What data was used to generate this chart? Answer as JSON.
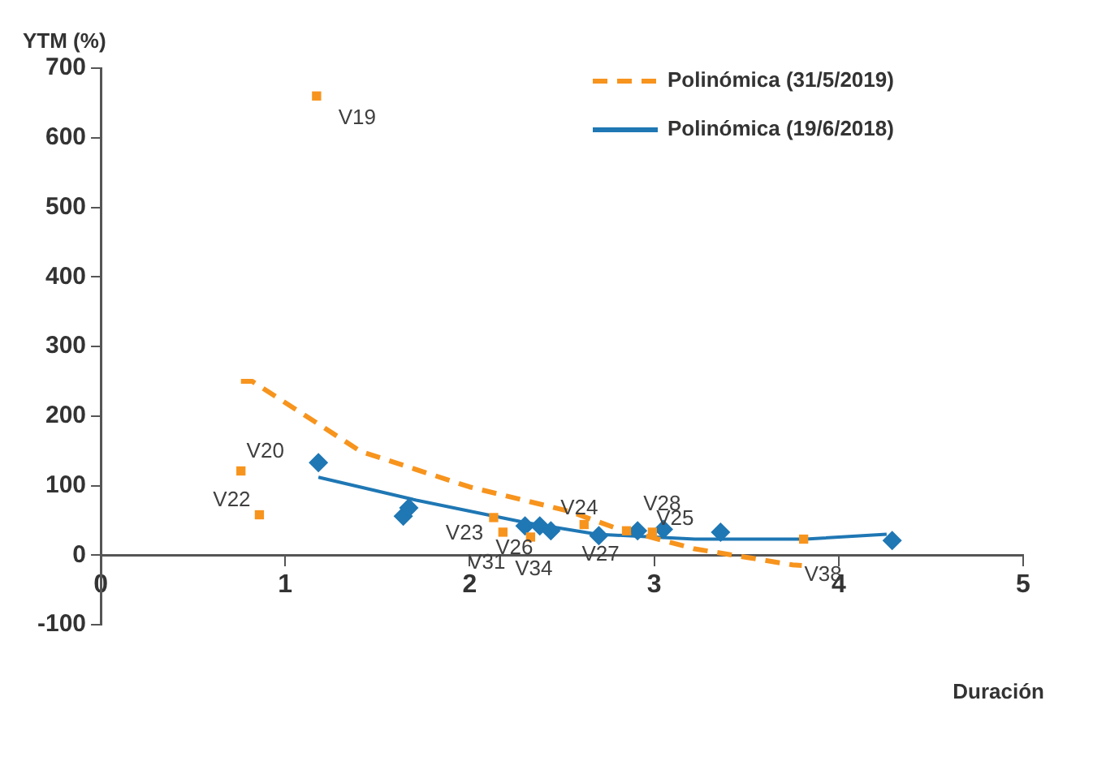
{
  "chart_data": {
    "type": "scatter",
    "xlabel": "Duración",
    "ylabel": "YTM (%)",
    "xlim": [
      0,
      5
    ],
    "xticks": [
      0,
      1,
      2,
      3,
      4,
      5
    ],
    "ylim": [
      -100,
      700
    ],
    "yticks": [
      -100,
      0,
      100,
      200,
      300,
      400,
      500,
      600,
      700
    ],
    "grid": false,
    "legend": "top right",
    "series": [
      {
        "type": "scatter",
        "marker": "square",
        "color": "#f7941d",
        "x": [
          1.17,
          0.76,
          0.86,
          2.13,
          2.18,
          2.33,
          2.62,
          2.85,
          2.99,
          3.81
        ],
        "values": [
          660,
          121,
          58,
          54,
          33,
          26,
          44,
          35,
          33,
          23
        ]
      },
      {
        "type": "scatter",
        "marker": "diamond",
        "color": "#1f77b4",
        "x": [
          1.18,
          1.64,
          1.67,
          2.3,
          2.38,
          2.44,
          2.7,
          2.91,
          3.05,
          3.36,
          4.29
        ],
        "values": [
          133,
          56,
          68,
          42,
          42,
          35,
          28,
          35,
          37,
          33,
          21
        ]
      },
      {
        "type": "line",
        "name": "Polinómica (31/5/2019)",
        "line_style": "dashed",
        "marker": "none",
        "color": "#f7941d",
        "x": [
          0.76,
          0.82,
          1.41,
          2.0,
          2.54,
          2.78,
          3.22,
          3.75,
          3.8
        ],
        "values": [
          250,
          250,
          149,
          98,
          63,
          40,
          9,
          -14,
          -15
        ]
      },
      {
        "type": "line",
        "name": "Polinómica (19/6/2018)",
        "line_style": "solid",
        "marker": "none",
        "color": "#1f77b4",
        "x": [
          1.18,
          1.71,
          2.3,
          2.69,
          3.22,
          3.82,
          4.26
        ],
        "values": [
          112,
          79,
          47,
          30,
          23,
          23,
          30
        ]
      }
    ],
    "annotations": [
      {
        "text": "V19",
        "x": 1.17,
        "y": 660
      },
      {
        "text": "V20",
        "x": 0.76,
        "y": 121
      },
      {
        "text": "V22",
        "x": 0.86,
        "y": 58
      },
      {
        "text": "V23",
        "x": 2.13,
        "y": 54
      },
      {
        "text": "V31",
        "x": 2.18,
        "y": 33
      },
      {
        "text": "V26",
        "x": 2.18,
        "y": 33
      },
      {
        "text": "V34",
        "x": 2.33,
        "y": 26
      },
      {
        "text": "V24",
        "x": 2.62,
        "y": 44
      },
      {
        "text": "V28",
        "x": 2.99,
        "y": 33
      },
      {
        "text": "V25",
        "x": 2.99,
        "y": 33
      },
      {
        "text": "V27",
        "x": 2.85,
        "y": 35
      },
      {
        "text": "V38",
        "x": 3.81,
        "y": 23
      }
    ]
  }
}
